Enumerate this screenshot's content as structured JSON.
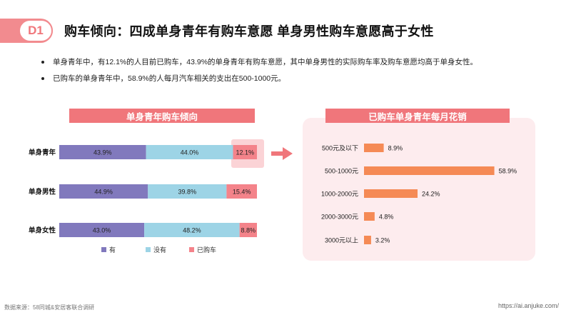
{
  "badge": "D1",
  "title": "购车倾向：四成单身青年有购车意愿 单身男性购车意愿高于女性",
  "bullets": [
    "单身青年中，有12.1%的人目前已购车，43.9%的单身青年有购车意愿，其中单身男性的实际购车率及购车意愿均高于单身女性。",
    "已购车的单身青年中，58.9%的人每月汽车相关的支出在500-1000元。"
  ],
  "left_header": "单身青年购车倾向",
  "right_header": "已购车单身青年每月花销",
  "footer": {
    "source": "数据来源：58同城&安居客联合调研",
    "url": "https://ai.anjuke.com/"
  },
  "colors": {
    "accent": "#f0767b",
    "you": "#8179bd",
    "meiyou": "#9dd4e6",
    "yigou": "#f4838a",
    "spend": "#f58a55",
    "panel": "#fdecee"
  },
  "chart_data": [
    {
      "type": "bar",
      "orientation": "horizontal",
      "stacked": true,
      "percent_stacked": true,
      "categories": [
        "单身青年",
        "单身男性",
        "单身女性"
      ],
      "series": [
        {
          "name": "有",
          "values": [
            43.9,
            44.9,
            43.0
          ]
        },
        {
          "name": "没有",
          "values": [
            44.0,
            39.8,
            48.2
          ]
        },
        {
          "name": "已购车",
          "values": [
            12.1,
            15.4,
            8.8
          ]
        }
      ],
      "value_labels": [
        [
          "43.9%",
          "44.0%",
          "12.1%"
        ],
        [
          "44.9%",
          "39.8%",
          "15.4%"
        ],
        [
          "43.0%",
          "48.2%",
          "8.8%"
        ]
      ],
      "title": "单身青年购车倾向",
      "legend_position": "bottom",
      "grid": false
    },
    {
      "type": "bar",
      "orientation": "horizontal",
      "categories": [
        "500元及以下",
        "500-1000元",
        "1000-2000元",
        "2000-3000元",
        "3000元以上"
      ],
      "values": [
        8.9,
        58.9,
        24.2,
        4.8,
        3.2
      ],
      "value_labels": [
        "8.9%",
        "58.9%",
        "24.2%",
        "4.8%",
        "3.2%"
      ],
      "title": "已购车单身青年每月花销",
      "grid": false
    }
  ]
}
